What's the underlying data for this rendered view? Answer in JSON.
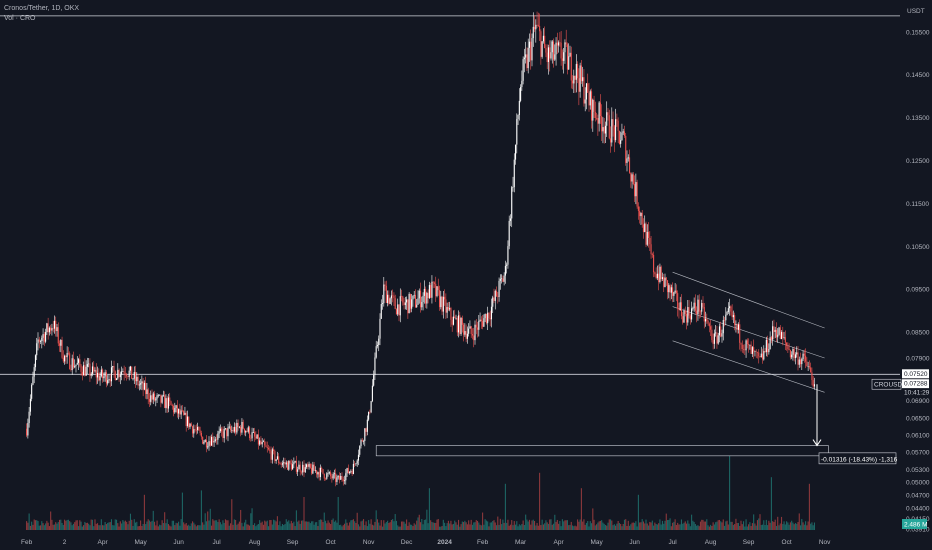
{
  "header": {
    "title": "Cronos/Tether, 1D, OKX",
    "indicator": "Vol · CRO"
  },
  "colors": {
    "background": "#131722",
    "bull": "#ffffff",
    "bear": "#ef5350",
    "volume_bull": "#26a69a",
    "volume_bear": "#ef5350",
    "text": "#b2b5be"
  },
  "chart_data": {
    "type": "candlestick",
    "symbol": "CROUSDT",
    "currency_label": "USDT",
    "ylim": [
      0.0375,
      0.162
    ],
    "y_ticks": [
      "0.15500",
      "0.14500",
      "0.13500",
      "0.12500",
      "0.11500",
      "0.10500",
      "0.09500",
      "0.08500",
      "0.07900",
      "0.06900",
      "0.06500",
      "0.06100",
      "0.05700",
      "0.05300",
      "0.05000",
      "0.04700",
      "0.04400",
      "0.04150",
      "0.03910"
    ],
    "x_ticks": [
      {
        "label": "Feb",
        "month": 0
      },
      {
        "label": "2",
        "month": 1
      },
      {
        "label": "Apr",
        "month": 2
      },
      {
        "label": "May",
        "month": 3
      },
      {
        "label": "Jun",
        "month": 4
      },
      {
        "label": "Jul",
        "month": 5
      },
      {
        "label": "Aug",
        "month": 6
      },
      {
        "label": "Sep",
        "month": 7
      },
      {
        "label": "Oct",
        "month": 8
      },
      {
        "label": "Nov",
        "month": 9
      },
      {
        "label": "Dec",
        "month": 10
      },
      {
        "label": "2024",
        "month": 11
      },
      {
        "label": "Feb",
        "month": 12
      },
      {
        "label": "Mar",
        "month": 13
      },
      {
        "label": "Apr",
        "month": 14
      },
      {
        "label": "May",
        "month": 15
      },
      {
        "label": "Jun",
        "month": 16
      },
      {
        "label": "Jul",
        "month": 17
      },
      {
        "label": "Aug",
        "month": 18
      },
      {
        "label": "Sep",
        "month": 19
      },
      {
        "label": "Oct",
        "month": 20
      },
      {
        "label": "Nov",
        "month": 21
      }
    ],
    "price_path": [
      [
        0,
        0.0625
      ],
      [
        0.3,
        0.083
      ],
      [
        0.7,
        0.087
      ],
      [
        1.0,
        0.079
      ],
      [
        1.5,
        0.0765
      ],
      [
        2.0,
        0.0745
      ],
      [
        2.6,
        0.0765
      ],
      [
        3.0,
        0.0725
      ],
      [
        3.3,
        0.0695
      ],
      [
        3.7,
        0.0685
      ],
      [
        4.2,
        0.0645
      ],
      [
        4.7,
        0.0595
      ],
      [
        5.2,
        0.0615
      ],
      [
        5.7,
        0.063
      ],
      [
        6.2,
        0.0585
      ],
      [
        6.7,
        0.0545
      ],
      [
        7.2,
        0.0535
      ],
      [
        7.7,
        0.0525
      ],
      [
        8.2,
        0.0505
      ],
      [
        8.6,
        0.0535
      ],
      [
        9.0,
        0.065
      ],
      [
        9.4,
        0.095
      ],
      [
        9.7,
        0.091
      ],
      [
        10.2,
        0.092
      ],
      [
        10.7,
        0.095
      ],
      [
        11.2,
        0.088
      ],
      [
        11.7,
        0.0845
      ],
      [
        12.2,
        0.09
      ],
      [
        12.6,
        0.099
      ],
      [
        13.0,
        0.143
      ],
      [
        13.4,
        0.156
      ],
      [
        13.7,
        0.149
      ],
      [
        14.1,
        0.15
      ],
      [
        14.5,
        0.145
      ],
      [
        14.9,
        0.137
      ],
      [
        15.3,
        0.133
      ],
      [
        15.7,
        0.13
      ],
      [
        16.1,
        0.115
      ],
      [
        16.5,
        0.1
      ],
      [
        16.9,
        0.095
      ],
      [
        17.3,
        0.089
      ],
      [
        17.7,
        0.091
      ],
      [
        18.1,
        0.083
      ],
      [
        18.5,
        0.089
      ],
      [
        18.9,
        0.082
      ],
      [
        19.3,
        0.078
      ],
      [
        19.7,
        0.086
      ],
      [
        20.1,
        0.0805
      ],
      [
        20.5,
        0.078
      ],
      [
        20.75,
        0.07288
      ]
    ],
    "volume_spikes": [
      [
        3.1,
        0.32
      ],
      [
        4.1,
        0.34
      ],
      [
        4.6,
        0.36
      ],
      [
        5.4,
        0.28
      ],
      [
        7.3,
        0.3
      ],
      [
        8.2,
        0.3
      ],
      [
        10.6,
        0.38
      ],
      [
        12.6,
        0.42
      ],
      [
        13.5,
        0.52
      ],
      [
        14.6,
        0.38
      ],
      [
        16.1,
        0.32
      ],
      [
        18.5,
        0.7
      ],
      [
        19.6,
        0.48
      ],
      [
        20.6,
        0.42
      ]
    ],
    "volume_scale_label": "2.486 M",
    "horizontal_levels": [
      0.15877,
      0.0752
    ],
    "channel_lines": [
      [
        [
          17.0,
          0.099
        ],
        [
          21.0,
          0.086
        ]
      ],
      [
        [
          17.0,
          0.091
        ],
        [
          21.0,
          0.079
        ]
      ],
      [
        [
          17.0,
          0.083
        ],
        [
          21.0,
          0.071
        ]
      ]
    ],
    "projection_zone": {
      "from_month": 9.2,
      "to_month": 21.1,
      "top": 0.05858,
      "bottom": 0.05619
    },
    "projection_arrow": {
      "month": 20.8,
      "from": 0.07288,
      "to": 0.05858
    },
    "price_labels": {
      "current_price": "0.07288",
      "level_price": "0.07520",
      "countdown": "10:41:29",
      "measure": "-0.01316 (-18.43%) -1,316"
    }
  }
}
